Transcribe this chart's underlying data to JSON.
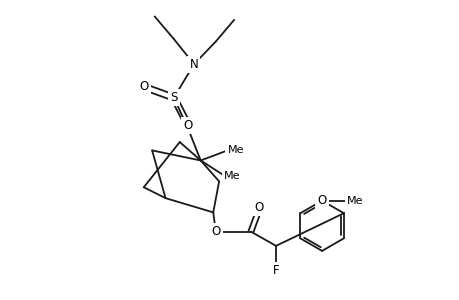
{
  "bg": "#ffffff",
  "lc": "#1a1a1a",
  "lw": 1.3,
  "fs": 8.5,
  "xlim": [
    0.3,
    4.8
  ],
  "ylim": [
    -0.35,
    3.2
  ],
  "figsize": [
    4.6,
    3.0
  ],
  "dpi": 100,
  "ph_r": 0.3,
  "ph_inner_off": 0.028,
  "dbond_off": 0.038
}
